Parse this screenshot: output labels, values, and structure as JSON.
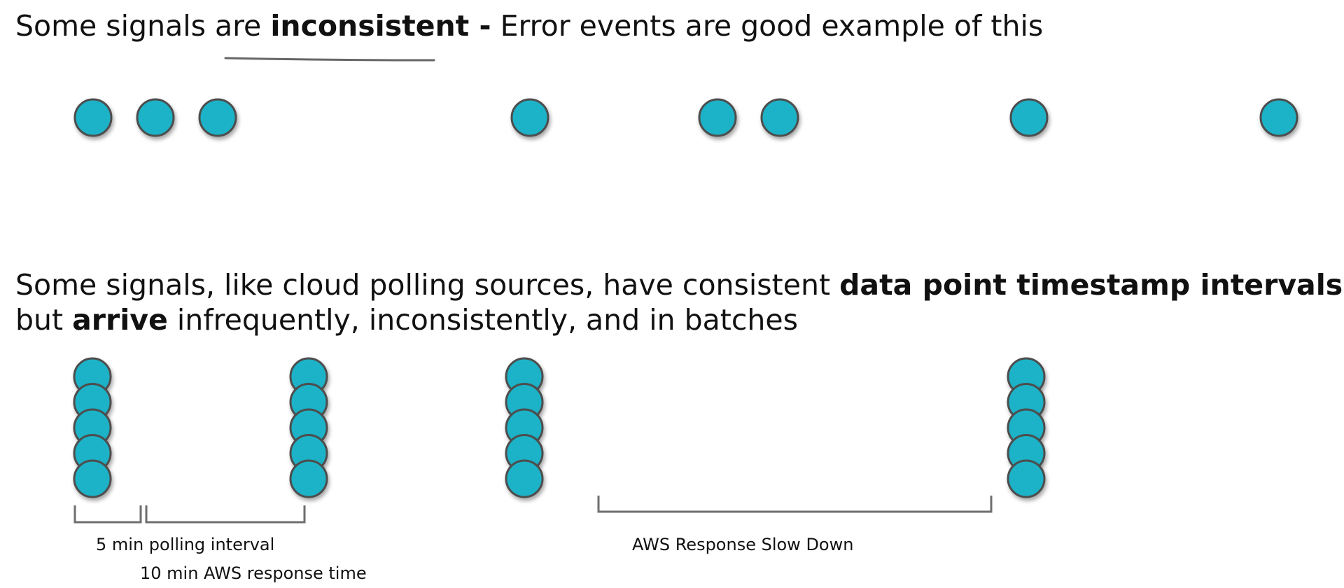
{
  "section1": {
    "text_before": "Some signals are ",
    "bold": "inconsistent -",
    "text_after": " Error events are good example of this",
    "dot_count": 8
  },
  "section2": {
    "line1_before": "Some signals, like cloud polling sources, have consistent ",
    "line1_bold": "data point timestamp intervals",
    "line1_after": ",",
    "line2_before": "but ",
    "line2_bold": "arrive",
    "line2_after": " infrequently, inconsistently, and in batches",
    "batch_count": 4,
    "points_per_batch": 5
  },
  "annotations": {
    "polling_interval": "5 min polling interval",
    "aws_response_time": "10 min AWS response time",
    "aws_slowdown": "AWS Response Slow Down"
  },
  "colors": {
    "dot_fill": "#1cb3c8",
    "dot_stroke": "#4d4d4d",
    "bracket": "#6e6e6e",
    "underline": "#666666"
  }
}
